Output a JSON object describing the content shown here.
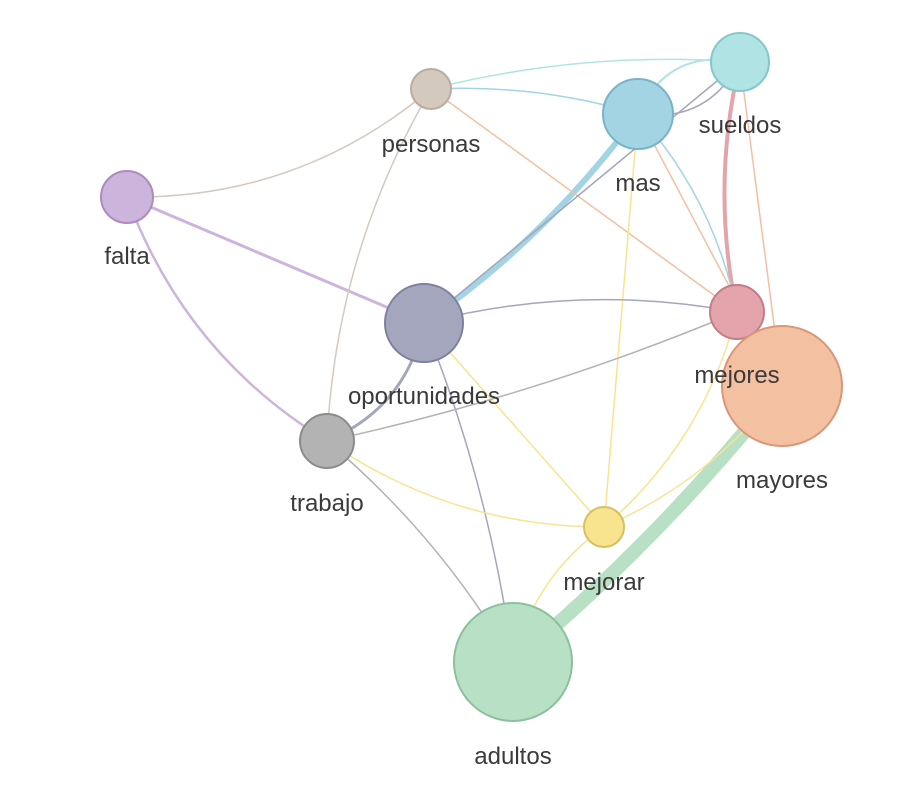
{
  "nodes": [
    {
      "id": "personas",
      "label": "personas",
      "color": "#d3c9bf",
      "stroke": "#b9ad9f",
      "weight": 1
    },
    {
      "id": "sueldos",
      "label": "sueldos",
      "color": "#b0e4e4",
      "stroke": "#86c7c7",
      "weight": 1.5
    },
    {
      "id": "mas",
      "label": "mas",
      "color": "#a3d4e4",
      "stroke": "#78b3c7",
      "weight": 2
    },
    {
      "id": "falta",
      "label": "falta",
      "color": "#cdb4dc",
      "stroke": "#aa8cbf",
      "weight": 1.4
    },
    {
      "id": "oportunidades",
      "label": "oportunidades",
      "color": "#a3a6bd",
      "stroke": "#7d80a0",
      "weight": 2.4
    },
    {
      "id": "mejores",
      "label": "mejores",
      "color": "#e3a4ac",
      "stroke": "#c47c86",
      "weight": 1.5
    },
    {
      "id": "mayores",
      "label": "mayores",
      "color": "#f4c0a2",
      "stroke": "#d9977a",
      "weight": 3.7
    },
    {
      "id": "trabajo",
      "label": "trabajo",
      "color": "#b3b3b3",
      "stroke": "#8c8c8c",
      "weight": 1.5
    },
    {
      "id": "mejorar",
      "label": "mejorar",
      "color": "#f8e48f",
      "stroke": "#d6c062",
      "weight": 1
    },
    {
      "id": "adultos",
      "label": "adultos",
      "color": "#b8e0c4",
      "stroke": "#8cc09c",
      "weight": 3.6
    }
  ],
  "edges": [
    {
      "source": "adultos",
      "target": "mayores",
      "weight": 14,
      "color": "#b8e0c4"
    },
    {
      "source": "oportunidades",
      "target": "mas",
      "weight": 6,
      "color": "#a3d4e4"
    },
    {
      "source": "mejores",
      "target": "sueldos",
      "weight": 4,
      "color": "#e3a4ac"
    },
    {
      "source": "falta",
      "target": "oportunidades",
      "weight": 3,
      "color": "#cdb4dc"
    },
    {
      "source": "falta",
      "target": "trabajo",
      "weight": 2.5,
      "color": "#cdb4dc"
    },
    {
      "source": "oportunidades",
      "target": "trabajo",
      "weight": 3,
      "color": "#a3a6bd"
    },
    {
      "source": "falta",
      "target": "personas",
      "weight": 1.5,
      "color": "#d3c9bf"
    },
    {
      "source": "personas",
      "target": "sueldos",
      "weight": 1.5,
      "color": "#b0e4e4"
    },
    {
      "source": "personas",
      "target": "mas",
      "weight": 1.5,
      "color": "#a3d4e4"
    },
    {
      "source": "personas",
      "target": "mejores",
      "weight": 1.5,
      "color": "#f4c0a2"
    },
    {
      "source": "personas",
      "target": "trabajo",
      "weight": 1.5,
      "color": "#d3c9bf"
    },
    {
      "source": "mas",
      "target": "sueldos",
      "weight": 2,
      "color": "#b0e4e4"
    },
    {
      "source": "mas",
      "target": "sueldos",
      "weight": 1.5,
      "color": "#a3a6bd"
    },
    {
      "source": "mas",
      "target": "mejores",
      "weight": 1.5,
      "color": "#a3d4e4"
    },
    {
      "source": "mas",
      "target": "mayores",
      "weight": 1.5,
      "color": "#f4c0a2"
    },
    {
      "source": "mas",
      "target": "mejorar",
      "weight": 1.5,
      "color": "#f8e48f"
    },
    {
      "source": "oportunidades",
      "target": "sueldos",
      "weight": 1.5,
      "color": "#a3a6bd"
    },
    {
      "source": "sueldos",
      "target": "mayores",
      "weight": 1.5,
      "color": "#f4c0a2"
    },
    {
      "source": "oportunidades",
      "target": "mejores",
      "weight": 1.5,
      "color": "#a3a6bd"
    },
    {
      "source": "oportunidades",
      "target": "adultos",
      "weight": 1.5,
      "color": "#a3a6bd"
    },
    {
      "source": "oportunidades",
      "target": "mejorar",
      "weight": 1.5,
      "color": "#f8e48f"
    },
    {
      "source": "trabajo",
      "target": "mejores",
      "weight": 1.5,
      "color": "#b3b3b3"
    },
    {
      "source": "trabajo",
      "target": "adultos",
      "weight": 1.5,
      "color": "#b3b3b3"
    },
    {
      "source": "trabajo",
      "target": "mejorar",
      "weight": 1.5,
      "color": "#f8e48f"
    },
    {
      "source": "mejorar",
      "target": "mejores",
      "weight": 1.5,
      "color": "#f8e48f"
    },
    {
      "source": "mejorar",
      "target": "mayores",
      "weight": 1.5,
      "color": "#f8e48f"
    },
    {
      "source": "mejorar",
      "target": "adultos",
      "weight": 1.5,
      "color": "#f8e48f"
    },
    {
      "source": "mejores",
      "target": "mayores",
      "weight": 1.5,
      "color": "#e3a4ac"
    }
  ]
}
